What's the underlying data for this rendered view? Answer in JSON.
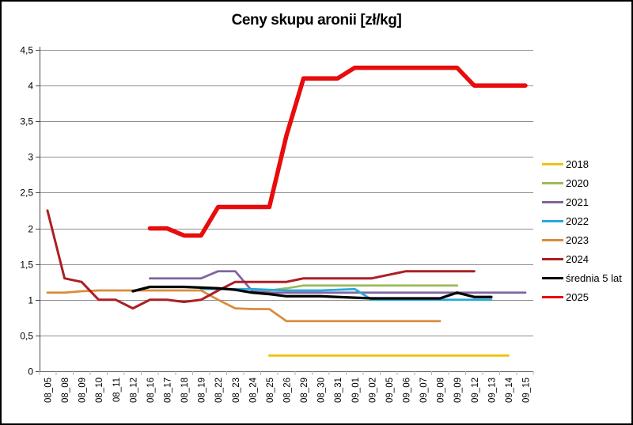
{
  "chart_data": {
    "type": "line",
    "title": "Ceny skupu aronii [zł/kg]",
    "xlabel": "",
    "ylabel": "",
    "ylim": [
      0,
      4.5
    ],
    "ytick_step": 0.5,
    "ytick_labels": [
      "0",
      "0,5",
      "1",
      "1,5",
      "2",
      "2,5",
      "3",
      "3,5",
      "4",
      "4,5"
    ],
    "grid": true,
    "legend_position": "right",
    "categories": [
      "08_05",
      "08_08",
      "08_09",
      "08_10",
      "08_11",
      "08_12",
      "08_16",
      "08_17",
      "08_18",
      "08_19",
      "08_22",
      "08_23",
      "08_24",
      "08_25",
      "08_26",
      "08_29",
      "08_30",
      "08_31",
      "09_01",
      "09_02",
      "09_05",
      "09_06",
      "09_07",
      "09_08",
      "09_09",
      "09_12",
      "09_13",
      "09_14",
      "09_15"
    ],
    "series": [
      {
        "name": "2018",
        "color": "#F0C314",
        "width": 3,
        "values": [
          null,
          null,
          null,
          null,
          null,
          null,
          null,
          null,
          null,
          null,
          null,
          null,
          null,
          0.22,
          0.22,
          0.22,
          0.22,
          0.22,
          0.22,
          0.22,
          0.22,
          0.22,
          0.22,
          0.22,
          0.22,
          0.22,
          0.22,
          0.22,
          null
        ]
      },
      {
        "name": "2020",
        "color": "#9BBB59",
        "width": 2.75,
        "values": [
          null,
          null,
          null,
          null,
          null,
          null,
          null,
          null,
          null,
          null,
          null,
          null,
          1.1,
          1.13,
          1.16,
          1.2,
          1.2,
          1.2,
          1.2,
          1.2,
          1.2,
          1.2,
          1.2,
          1.2,
          1.2,
          null,
          null,
          null,
          null
        ]
      },
      {
        "name": "2021",
        "color": "#8064A2",
        "width": 2.75,
        "values": [
          null,
          null,
          null,
          null,
          null,
          null,
          1.3,
          1.3,
          1.3,
          1.3,
          1.4,
          1.4,
          1.12,
          1.1,
          1.1,
          1.1,
          1.1,
          1.1,
          1.1,
          1.1,
          1.1,
          1.1,
          1.1,
          1.1,
          1.1,
          1.1,
          1.1,
          1.1,
          1.1
        ]
      },
      {
        "name": "2022",
        "color": "#25A9DC",
        "width": 2.75,
        "values": [
          null,
          null,
          null,
          null,
          null,
          null,
          null,
          null,
          null,
          1.15,
          1.15,
          1.15,
          1.15,
          1.14,
          1.13,
          1.13,
          1.13,
          1.14,
          1.15,
          1.0,
          1.0,
          1.0,
          1.0,
          1.0,
          1.0,
          1.0,
          1.0,
          null,
          null
        ]
      },
      {
        "name": "2023",
        "color": "#D98C3C",
        "width": 2.75,
        "values": [
          1.1,
          1.1,
          1.12,
          1.13,
          1.13,
          1.13,
          1.13,
          1.13,
          1.13,
          1.13,
          1.0,
          0.88,
          0.87,
          0.87,
          0.7,
          0.7,
          0.7,
          0.7,
          0.7,
          0.7,
          0.7,
          0.7,
          0.7,
          0.7,
          null,
          null,
          null,
          null,
          null
        ]
      },
      {
        "name": "2024",
        "color": "#AC1F23",
        "width": 3,
        "values": [
          2.25,
          1.3,
          1.25,
          1.0,
          1.0,
          0.88,
          1.0,
          1.0,
          0.97,
          1.0,
          1.13,
          1.25,
          1.25,
          1.25,
          1.25,
          1.3,
          1.3,
          1.3,
          1.3,
          1.3,
          1.35,
          1.4,
          1.4,
          1.4,
          1.4,
          1.4,
          null,
          null,
          null
        ]
      },
      {
        "name": "średnia 5 lat",
        "color": "#000000",
        "width": 3.25,
        "values": [
          null,
          null,
          null,
          null,
          null,
          1.12,
          1.18,
          1.18,
          1.18,
          1.17,
          1.16,
          1.14,
          1.1,
          1.08,
          1.05,
          1.05,
          1.05,
          1.04,
          1.03,
          1.02,
          1.02,
          1.02,
          1.02,
          1.02,
          1.1,
          1.04,
          1.04,
          null,
          null
        ]
      },
      {
        "name": "2025",
        "color": "#E80C0C",
        "width": 5.5,
        "values": [
          null,
          null,
          null,
          null,
          null,
          null,
          2.0,
          2.0,
          1.9,
          1.9,
          2.3,
          2.3,
          2.3,
          2.3,
          3.3,
          4.1,
          4.1,
          4.1,
          4.25,
          4.25,
          4.25,
          4.25,
          4.25,
          4.25,
          4.25,
          4.0,
          4.0,
          4.0,
          4.0
        ]
      }
    ]
  }
}
